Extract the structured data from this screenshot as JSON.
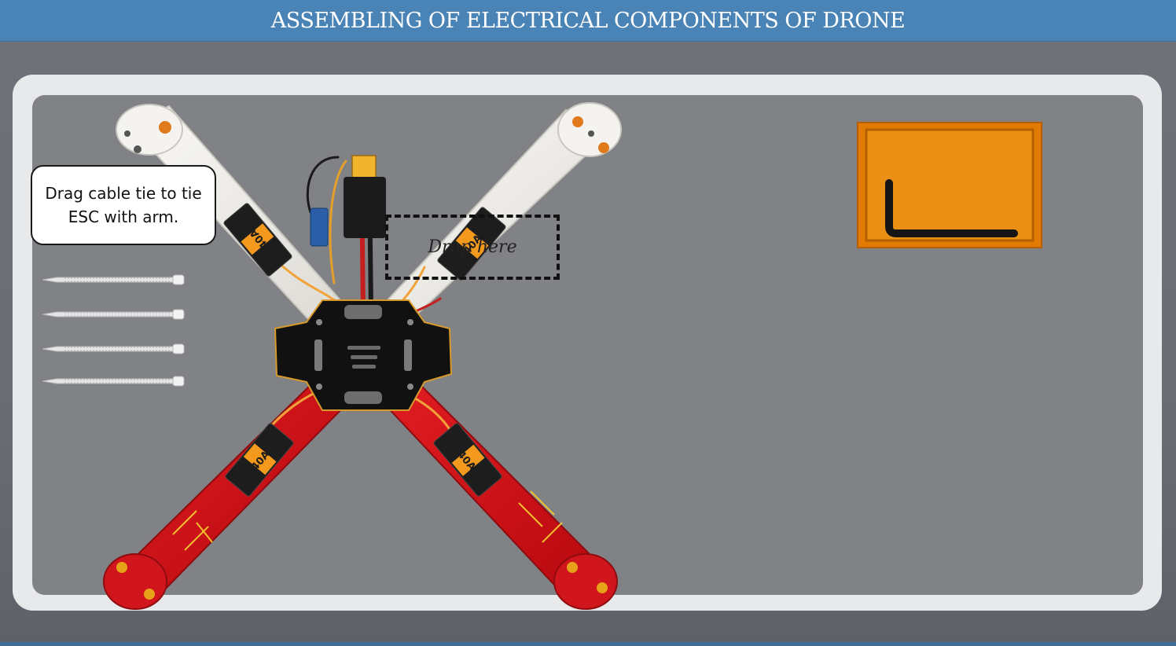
{
  "header": {
    "title": "ASSEMBLING OF ELECTRICAL COMPONENTS OF DRONE"
  },
  "instruction": {
    "text": "Drag cable tie to tie ESC with arm."
  },
  "dropzone": {
    "label": "Drop here"
  },
  "esc": {
    "label": "40A"
  },
  "cable_ties": [
    {
      "name": "cable-tie-1"
    },
    {
      "name": "cable-tie-2"
    },
    {
      "name": "cable-tie-3"
    },
    {
      "name": "cable-tie-4"
    }
  ],
  "tools": {
    "allen_key_icon": "allen-key-icon"
  },
  "colors": {
    "header": "#4a83b5",
    "stage": "#808285",
    "frame": "#e8e9eb",
    "arm_white": "#f1f0ec",
    "arm_red": "#d0161c",
    "esc_body": "#1d1d1d",
    "esc_accent": "#f39a1e",
    "toolbox": "#e07b00"
  }
}
